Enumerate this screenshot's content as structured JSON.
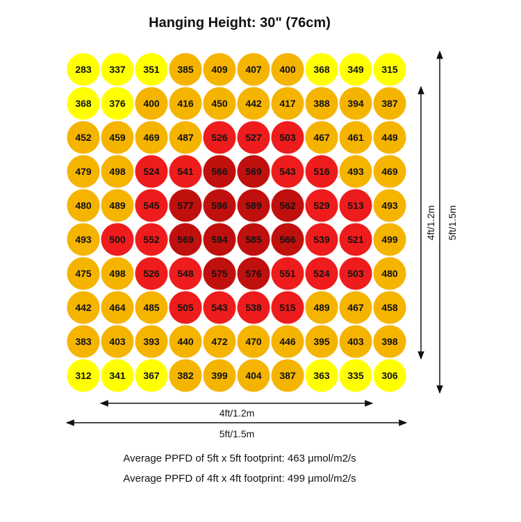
{
  "title": "Hanging Height: 30\" (76cm)",
  "colors": {
    "tier_lt_380": "#ffff00",
    "tier_380_499": "#f5b400",
    "tier_500_559": "#ee1c1c",
    "tier_ge_560": "#c0100e"
  },
  "chart_data": {
    "type": "heatmap",
    "title": "Hanging Height: 30\" (76cm)",
    "unit": "μmol/m2/s",
    "rows": [
      [
        283,
        337,
        351,
        385,
        409,
        407,
        400,
        368,
        349,
        315
      ],
      [
        368,
        376,
        400,
        416,
        450,
        442,
        417,
        388,
        394,
        387
      ],
      [
        452,
        459,
        469,
        487,
        526,
        527,
        503,
        467,
        461,
        449
      ],
      [
        479,
        498,
        524,
        541,
        566,
        569,
        543,
        516,
        493,
        469
      ],
      [
        480,
        489,
        545,
        577,
        596,
        589,
        562,
        529,
        513,
        493
      ],
      [
        493,
        500,
        552,
        569,
        594,
        585,
        566,
        539,
        521,
        499
      ],
      [
        475,
        498,
        526,
        548,
        575,
        576,
        551,
        524,
        503,
        480
      ],
      [
        442,
        464,
        485,
        505,
        543,
        538,
        515,
        489,
        467,
        458
      ],
      [
        383,
        403,
        393,
        440,
        472,
        470,
        446,
        395,
        403,
        398
      ],
      [
        312,
        341,
        367,
        382,
        399,
        404,
        387,
        363,
        335,
        306
      ]
    ],
    "dimension_labels": {
      "inner_width": "4ft/1.2m",
      "outer_width": "5ft/1.5m",
      "inner_height": "4ft/1.2m",
      "outer_height": "5ft/1.5m"
    }
  },
  "notes": {
    "avg_5ft": "Average PPFD of 5ft x 5ft footprint: 463 μmol/m2/s",
    "avg_4ft": "Average PPFD of 4ft x 4ft footprint: 499 μmol/m2/s"
  }
}
